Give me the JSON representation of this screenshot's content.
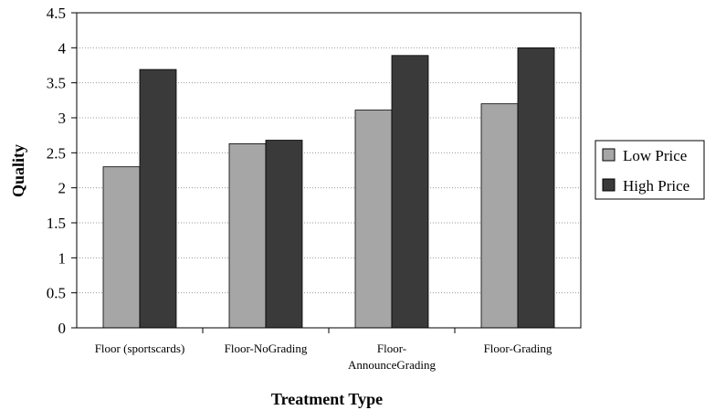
{
  "chart_data": {
    "type": "bar",
    "title": "",
    "xlabel": "Treatment Type",
    "ylabel": "Quality",
    "categories": [
      "Floor (sportscards)",
      "Floor-NoGrading",
      "Floor-AnnounceGrading",
      "Floor-Grading"
    ],
    "category_display": [
      [
        "Floor (sportscards)"
      ],
      [
        "Floor-NoGrading"
      ],
      [
        "Floor-",
        "AnnounceGrading"
      ],
      [
        "Floor-Grading"
      ]
    ],
    "series": [
      {
        "name": "Low Price",
        "values": [
          2.3,
          2.63,
          3.11,
          3.2
        ],
        "color": "#a6a6a6"
      },
      {
        "name": "High Price",
        "values": [
          3.69,
          2.68,
          3.89,
          4.0
        ],
        "color": "#3a3a3a"
      }
    ],
    "ylim": [
      0,
      4.5
    ],
    "yticks": [
      "0",
      "0.5",
      "1",
      "1.5",
      "2",
      "2.5",
      "3",
      "3.5",
      "4",
      "4.5"
    ],
    "grid": true,
    "legend_position": "right"
  }
}
